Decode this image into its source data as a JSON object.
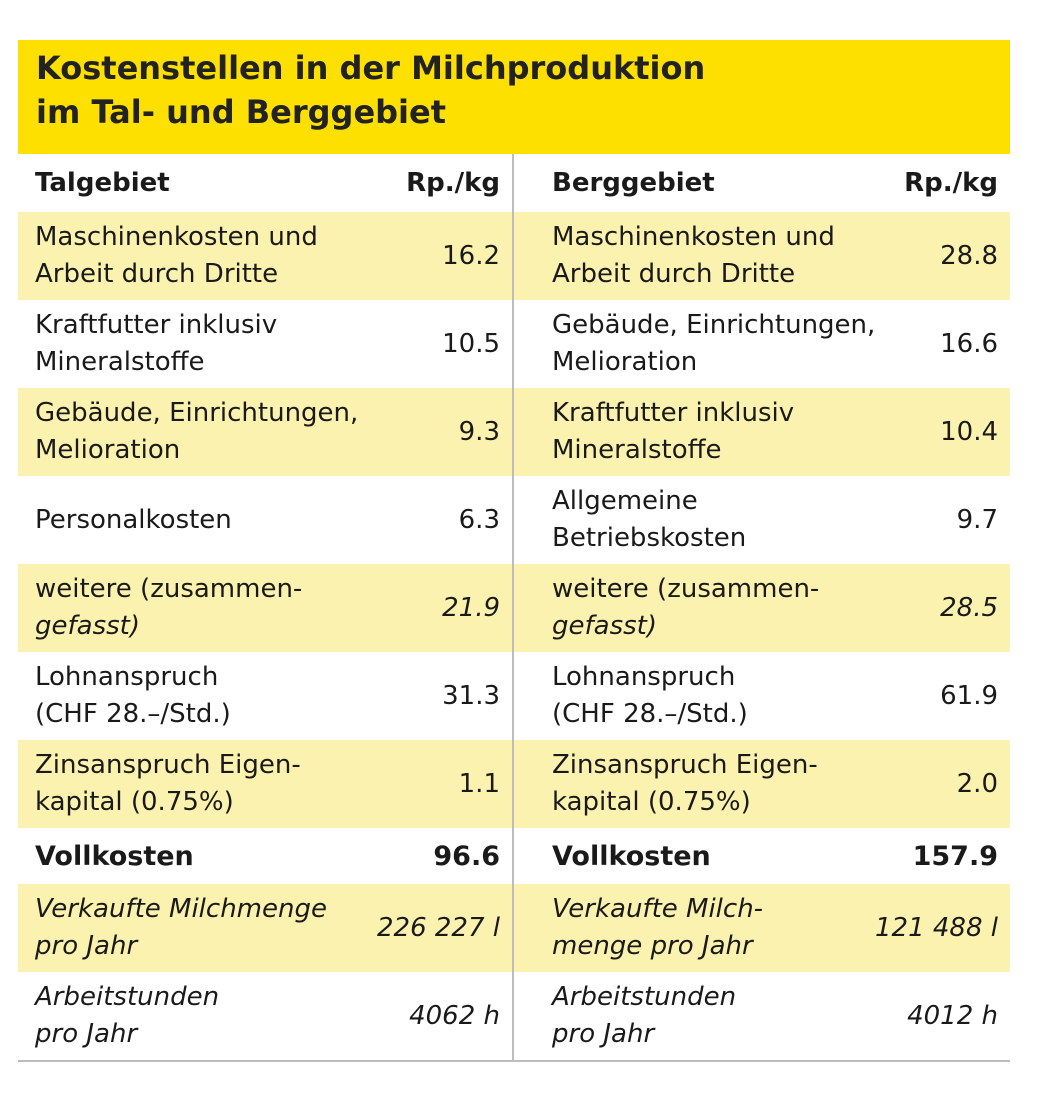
{
  "title": {
    "line1": "Kostenstellen in der Milchproduktion",
    "line2": "im Tal- und Berggebiet"
  },
  "colors": {
    "title_bg": "#fde000",
    "row_shade": "#fcf2b0",
    "divider": "#bdbdbd"
  },
  "tal": {
    "header": "Talgebiet",
    "unit": "Rp./kg",
    "rows": [
      {
        "l1": "Maschinenkosten und",
        "l2": "Arbeit durch Dritte",
        "value": "16.2"
      },
      {
        "l1": "Kraftfutter inklusiv",
        "l2": "Mineralstoffe",
        "value": "10.5"
      },
      {
        "l1": "Gebäude, Einrichtungen,",
        "l2": "Melioration",
        "value": "9.3"
      },
      {
        "l1": "Personalkosten",
        "value": "6.3"
      },
      {
        "l1": "weitere (zusammen-",
        "l2": "gefasst)",
        "value": "21.9"
      },
      {
        "l1": "Lohnanspruch",
        "l2": "(CHF 28.–/Std.)",
        "value": "31.3"
      },
      {
        "l1": "Zinsanspruch Eigen-",
        "l2": "kapital  (0.75%)",
        "value": "1.1"
      }
    ],
    "total_label": "Vollkosten",
    "total_value": "96.6",
    "extra": [
      {
        "l1": "Verkaufte Milchmenge",
        "l2": "pro Jahr",
        "value": "226 227 l"
      },
      {
        "l1": "Arbeitstunden",
        "l2": "pro Jahr",
        "value": "4062 h"
      }
    ]
  },
  "berg": {
    "header": "Berggebiet",
    "unit": "Rp./kg",
    "rows": [
      {
        "l1": "Maschinenkosten und",
        "l2": "Arbeit durch Dritte",
        "value": "28.8"
      },
      {
        "l1": "Gebäude, Einrichtungen,",
        "l2": "Melioration",
        "value": "16.6"
      },
      {
        "l1": "Kraftfutter inklusiv",
        "l2": "Mineralstoffe",
        "value": "10.4"
      },
      {
        "l1": "Allgemeine",
        "l2": "Betriebskosten",
        "value": "9.7"
      },
      {
        "l1": "weitere (zusammen-",
        "l2": "gefasst)",
        "value": "28.5"
      },
      {
        "l1": "Lohnanspruch",
        "l2": "(CHF 28.–/Std.)",
        "value": "61.9"
      },
      {
        "l1": "Zinsanspruch Eigen-",
        "l2": "kapital  (0.75%)",
        "value": "2.0"
      }
    ],
    "total_label": "Vollkosten",
    "total_value": "157.9",
    "extra": [
      {
        "l1": "Verkaufte Milch-",
        "l2": "menge pro Jahr",
        "value": "121 488 l"
      },
      {
        "l1": "Arbeitstunden",
        "l2": "pro Jahr",
        "value": "4012 h"
      }
    ]
  }
}
